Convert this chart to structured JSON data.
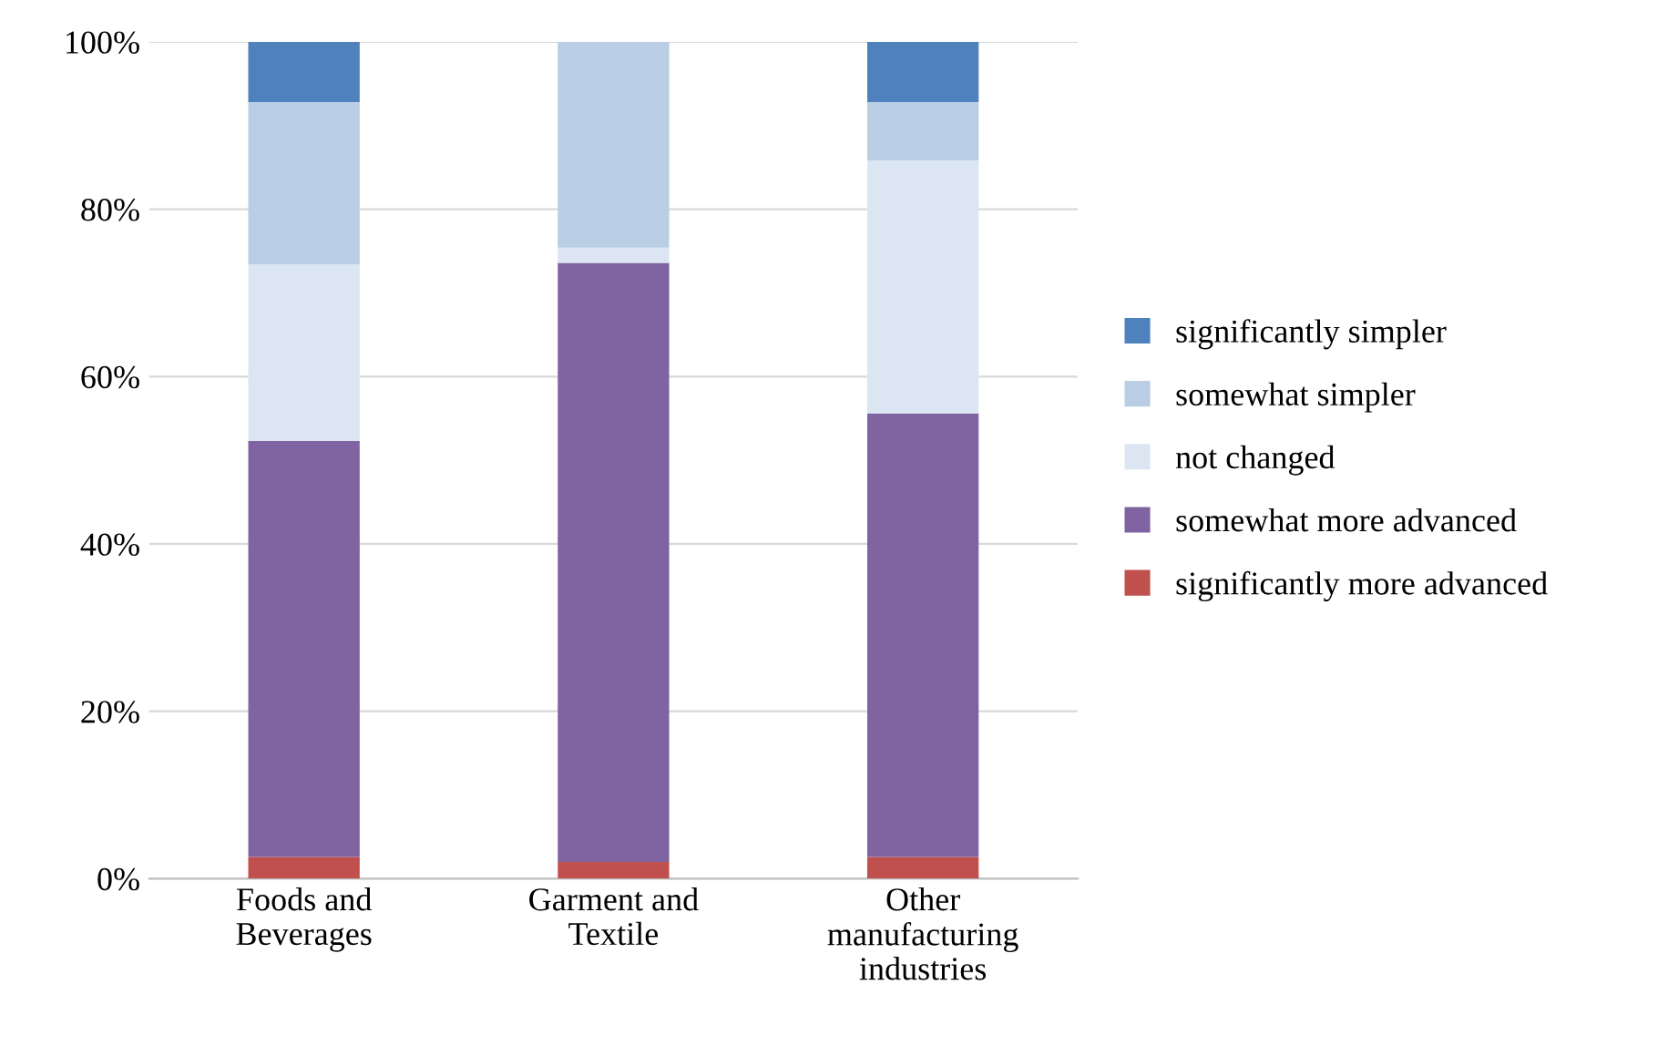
{
  "chart_data": {
    "type": "bar",
    "stacked": true,
    "categories": [
      "Foods and\nBeverages",
      "Garment and\nTextile",
      "Other\nmanufacturing\nindustries"
    ],
    "series": [
      {
        "name": "significantly more advanced",
        "color": "#c0504d",
        "values": [
          2.6,
          2.0,
          2.6
        ]
      },
      {
        "name": "somewhat more advanced",
        "color": "#8064a2",
        "values": [
          49.7,
          71.6,
          53.0
        ]
      },
      {
        "name": "not changed",
        "color": "#dce6f2",
        "values": [
          21.1,
          1.8,
          30.2
        ]
      },
      {
        "name": "somewhat simpler",
        "color": "#b9cde5",
        "values": [
          19.4,
          24.6,
          7.0
        ]
      },
      {
        "name": "significantly simpler",
        "color": "#4f81bd",
        "values": [
          7.2,
          0,
          7.2
        ]
      }
    ],
    "ylim": [
      0,
      100
    ],
    "yticks": [
      {
        "value": 0,
        "label": "0%"
      },
      {
        "value": 20,
        "label": "20%"
      },
      {
        "value": 40,
        "label": "40%"
      },
      {
        "value": 60,
        "label": "60%"
      },
      {
        "value": 80,
        "label": "80%"
      },
      {
        "value": 100,
        "label": "100%"
      }
    ],
    "grid": "y",
    "legend": "right"
  }
}
